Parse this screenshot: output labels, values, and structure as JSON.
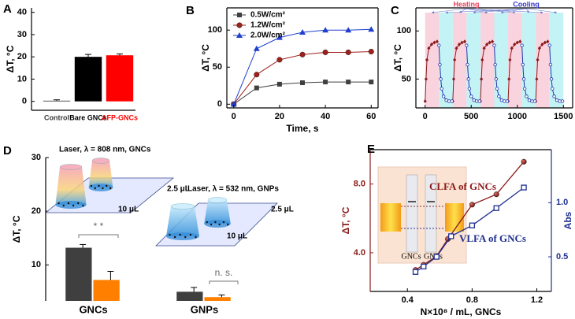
{
  "chart_data": [
    {
      "panel_label": "A",
      "type": "bar",
      "ylabel": "ΔT, °C",
      "categories": [
        "Control",
        "Bare GNCs",
        "AFP-GNCs"
      ],
      "values": [
        0.3,
        20.0,
        20.7
      ],
      "errors": [
        0.4,
        1.1,
        0.6
      ],
      "colors": [
        "#3a3a3a",
        "#000000",
        "#ff0000"
      ],
      "ylim": [
        -4,
        42
      ],
      "yticks": [
        0,
        10,
        20,
        30,
        40
      ]
    },
    {
      "panel_label": "B",
      "type": "line",
      "xlabel": "Time, s",
      "ylabel": "ΔT, °C",
      "x": [
        0,
        10,
        20,
        30,
        40,
        50,
        60
      ],
      "series": [
        {
          "name": "0.5W/cm²",
          "color": "#404040",
          "marker": "square",
          "values": [
            0,
            22,
            27,
            29,
            30,
            30,
            30
          ]
        },
        {
          "name": "1.2W/cm²",
          "color": "#a0201c",
          "marker": "circle",
          "values": [
            0,
            40,
            60,
            67,
            70,
            70,
            71
          ]
        },
        {
          "name": "2.0W/cm²",
          "color": "#1f3fcf",
          "marker": "triangle",
          "values": [
            0,
            75,
            90,
            97,
            100,
            100,
            101
          ]
        }
      ],
      "xlim": [
        -3,
        63
      ],
      "xticks": [
        0,
        20,
        40,
        60
      ],
      "ylim": [
        -5,
        130
      ],
      "yticks": [
        0,
        50,
        100
      ],
      "legend": "upper left"
    },
    {
      "panel_label": "C",
      "type": "line",
      "ylabel": "ΔT, °C",
      "series": [
        {
          "color": "#8b1a1a",
          "marker": "diamond",
          "x": [
            0,
            10,
            20,
            40,
            70,
            100,
            130,
            null,
            300,
            310,
            320,
            340,
            370,
            400,
            430,
            null,
            600,
            610,
            620,
            640,
            670,
            700,
            730,
            null,
            900,
            910,
            920,
            940,
            970,
            1000,
            1030,
            null,
            1200,
            1210,
            1220,
            1240,
            1270,
            1300,
            1330
          ],
          "values": [
            27,
            50,
            70,
            82,
            86,
            88,
            89,
            null,
            27,
            50,
            70,
            82,
            86,
            88,
            89,
            null,
            27,
            50,
            70,
            82,
            86,
            88,
            89,
            null,
            27,
            50,
            70,
            82,
            86,
            88,
            89,
            null,
            27,
            50,
            70,
            82,
            86,
            88,
            89
          ]
        },
        {
          "color": "#2233aa",
          "marker": "circle-open",
          "x": [
            150,
            160,
            170,
            180,
            200,
            230,
            260,
            290,
            null,
            450,
            460,
            470,
            480,
            500,
            530,
            560,
            590,
            null,
            750,
            760,
            770,
            780,
            800,
            830,
            860,
            890,
            null,
            1050,
            1060,
            1070,
            1080,
            1100,
            1130,
            1160,
            1190,
            null,
            1350,
            1360,
            1370,
            1380,
            1400,
            1430,
            1460,
            1490
          ],
          "values": [
            85,
            65,
            50,
            40,
            32,
            28,
            27,
            27,
            null,
            85,
            65,
            50,
            40,
            32,
            28,
            27,
            27,
            null,
            85,
            65,
            50,
            40,
            32,
            28,
            27,
            27,
            null,
            85,
            65,
            50,
            40,
            32,
            28,
            27,
            27,
            null,
            85,
            65,
            50,
            40,
            32,
            28,
            27,
            27
          ]
        }
      ],
      "heating_periods": [
        [
          0,
          150
        ],
        [
          300,
          450
        ],
        [
          600,
          750
        ],
        [
          900,
          1050
        ],
        [
          1200,
          1350
        ]
      ],
      "cooling_periods": [
        [
          150,
          300
        ],
        [
          450,
          600
        ],
        [
          750,
          900
        ],
        [
          1050,
          1200
        ],
        [
          1350,
          1500
        ]
      ],
      "annotations": [
        {
          "text": "Heating",
          "color": "#e8405a"
        },
        {
          "text": "Cooling",
          "color": "#3333cc"
        }
      ],
      "xlim": [
        -100,
        1600
      ],
      "xticks": [
        0,
        500,
        1000,
        1500
      ],
      "ylim": [
        20,
        124
      ],
      "yticks": [
        50,
        100
      ]
    },
    {
      "panel_label": "D",
      "type": "bar",
      "ylabel": "ΔT, °C",
      "categories": [
        "GNCs",
        "GNPs"
      ],
      "series": [
        {
          "color": "#3f3f3f",
          "values": [
            13.2,
            5.0
          ],
          "errors": [
            0.6,
            0.8
          ]
        },
        {
          "color": "#ff8000",
          "values": [
            7.2,
            4.0
          ],
          "errors": [
            1.6,
            0.4
          ]
        }
      ],
      "ylim": [
        3.3,
        30
      ],
      "yticks": [
        10,
        20,
        30
      ],
      "annotations": [
        "* *",
        "n. s."
      ],
      "illustrations": [
        {
          "caption": "Laser, λ = 808 nm,  GNCs",
          "volumes": [
            "2.5  μL",
            "10 μL"
          ]
        },
        {
          "caption": "Laser, λ = 532 nm,  GNPs",
          "volumes": [
            "2.5  μL",
            "10 μL"
          ]
        }
      ]
    },
    {
      "panel_label": "E",
      "type": "scatter",
      "xlabel": "N×10⁸ / mL, GNCs",
      "ylabel": "ΔT, °C",
      "y2label": "Abs",
      "series": [
        {
          "name": "CLFA of GNCs",
          "color": "#8b1a1a",
          "marker": "circle",
          "x": [
            0.45,
            0.5,
            0.58,
            0.65,
            0.8,
            0.95,
            1.12
          ],
          "values": [
            3.0,
            3.3,
            3.8,
            4.8,
            6.8,
            7.4,
            9.3
          ]
        },
        {
          "name": "VLFA of GNCs",
          "color": "#1f2f8f",
          "marker": "square-open",
          "axis": "y2",
          "x": [
            0.45,
            0.5,
            0.58,
            0.67,
            0.8,
            0.95,
            1.12
          ],
          "values": [
            0.36,
            0.41,
            0.5,
            0.69,
            0.79,
            0.95,
            1.14
          ]
        }
      ],
      "xlim": [
        0.17,
        1.29
      ],
      "xticks": [
        0.4,
        0.8,
        1.2
      ],
      "ylim": [
        1.75,
        10.0
      ],
      "yticks": [
        {
          "value": 4,
          "label": "4.0"
        },
        {
          "value": 8,
          "label": "8.0"
        }
      ],
      "y2lim": [
        0.18,
        1.49
      ],
      "y2ticks": [
        0.5,
        {
          "value": 1,
          "label": "1.0"
        }
      ],
      "inset_labels": [
        "GNCs",
        "GNPs"
      ]
    }
  ]
}
